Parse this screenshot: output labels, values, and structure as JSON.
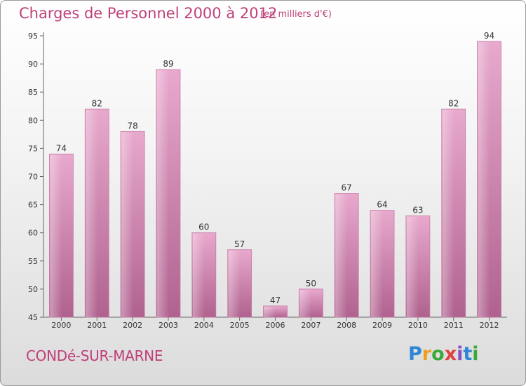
{
  "header": {
    "title": "Charges de Personnel 2000 à 2012",
    "subtitle": "(en milliers d'€)"
  },
  "footer": {
    "town": "CONDé-SUR-MARNE",
    "logo_letters": [
      {
        "ch": "P",
        "color": "#2e86d6"
      },
      {
        "ch": "r",
        "color": "#f0a020"
      },
      {
        "ch": "o",
        "color": "#3aa83a"
      },
      {
        "ch": "x",
        "color": "#e04040"
      },
      {
        "ch": "i",
        "color": "#8a4fc0"
      },
      {
        "ch": "t",
        "color": "#2e86d6"
      },
      {
        "ch": "i",
        "color": "#3aa83a"
      }
    ]
  },
  "chart_data": {
    "type": "bar",
    "title": "Charges de Personnel 2000 à 2012",
    "subtitle": "(en milliers d'€)",
    "categories": [
      "2000",
      "2001",
      "2002",
      "2003",
      "2004",
      "2005",
      "2006",
      "2007",
      "2008",
      "2009",
      "2010",
      "2011",
      "2012"
    ],
    "values": [
      74,
      82,
      78,
      89,
      60,
      57,
      47,
      50,
      67,
      64,
      63,
      82,
      94
    ],
    "ylim": [
      45,
      95
    ],
    "yticks": [
      45,
      50,
      55,
      60,
      65,
      70,
      75,
      80,
      85,
      90,
      95
    ],
    "grid": false,
    "bar_color": "#c0588f"
  }
}
